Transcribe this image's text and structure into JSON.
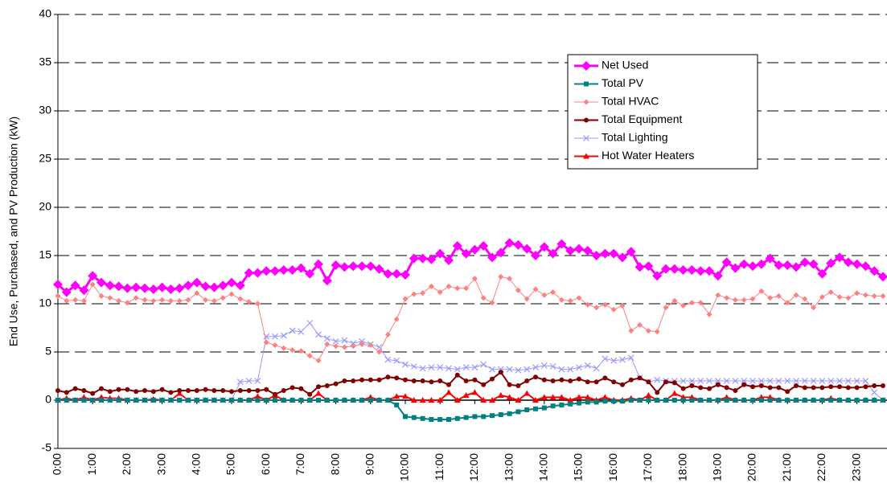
{
  "chart_data": {
    "type": "line",
    "y_label": "End Use, Purchased, and PV Production (kW)",
    "categories": [
      "0:00",
      null,
      null,
      null,
      "1:00",
      null,
      null,
      null,
      "2:00",
      null,
      null,
      null,
      "3:00",
      null,
      null,
      null,
      "4:00",
      null,
      null,
      null,
      "5:00",
      null,
      null,
      null,
      "6:00",
      null,
      null,
      null,
      "7:00",
      null,
      null,
      null,
      "8:00",
      null,
      null,
      null,
      "9:00",
      null,
      null,
      null,
      "10:00",
      null,
      null,
      null,
      "11:00",
      null,
      null,
      null,
      "12:00",
      null,
      null,
      null,
      "13:00",
      null,
      null,
      null,
      "14:00",
      null,
      null,
      null,
      "15:00",
      null,
      null,
      null,
      "16:00",
      null,
      null,
      null,
      "17:00",
      null,
      null,
      null,
      "18:00",
      null,
      null,
      null,
      "19:00",
      null,
      null,
      null,
      "20:00",
      null,
      null,
      null,
      "21:00",
      null,
      null,
      null,
      "22:00",
      null,
      null,
      null,
      "23:00",
      null,
      null,
      null
    ],
    "ylim": [
      -5,
      40
    ],
    "yticks": [
      -5,
      0,
      5,
      10,
      15,
      20,
      25,
      30,
      35,
      40
    ],
    "grid": true,
    "series": [
      {
        "name": "Net Used",
        "color": "#ff00ff",
        "marker": "diamond",
        "width": 3,
        "values": [
          12.0,
          11.2,
          11.9,
          11.4,
          12.9,
          12.2,
          11.9,
          11.8,
          11.6,
          11.7,
          11.6,
          11.5,
          11.7,
          11.5,
          11.6,
          11.9,
          12.2,
          11.8,
          11.7,
          11.9,
          12.2,
          11.9,
          13.2,
          13.2,
          13.4,
          13.4,
          13.5,
          13.5,
          13.7,
          13.1,
          14.1,
          12.4,
          14.0,
          13.8,
          13.9,
          13.9,
          13.9,
          13.6,
          13.1,
          13.1,
          13.0,
          14.7,
          14.7,
          14.6,
          15.2,
          14.5,
          16.0,
          15.2,
          15.6,
          16.0,
          14.8,
          15.3,
          16.3,
          16.1,
          15.7,
          15.0,
          15.9,
          15.2,
          16.2,
          15.5,
          15.7,
          15.5,
          15.0,
          15.2,
          15.2,
          14.8,
          15.4,
          13.8,
          13.9,
          12.9,
          13.6,
          13.6,
          13.5,
          13.5,
          13.4,
          13.4,
          12.9,
          14.3,
          13.7,
          14.1,
          13.9,
          14.1,
          14.7,
          14.0,
          14.0,
          13.8,
          14.3,
          14.1,
          13.1,
          14.2,
          14.8,
          14.3,
          14.1,
          13.9,
          13.4,
          12.8
        ]
      },
      {
        "name": "Total PV",
        "color": "#008080",
        "marker": "square",
        "width": 2,
        "values": [
          0,
          0,
          0,
          0,
          0,
          0,
          0,
          0,
          0,
          0,
          0,
          0,
          0,
          0,
          0,
          0,
          0,
          0,
          0,
          0,
          0,
          0,
          0,
          0,
          0,
          0,
          0,
          0,
          0,
          0,
          0,
          0,
          0,
          0,
          0,
          0,
          0,
          0,
          0,
          -0.5,
          -1.7,
          -1.8,
          -1.9,
          -2.0,
          -2.0,
          -2.0,
          -1.9,
          -1.8,
          -1.7,
          -1.7,
          -1.6,
          -1.5,
          -1.4,
          -1.2,
          -1.0,
          -0.9,
          -0.8,
          -0.6,
          -0.5,
          -0.4,
          -0.3,
          -0.2,
          -0.2,
          -0.1,
          -0.1,
          -0.1,
          0,
          0,
          0,
          0,
          0,
          0,
          0,
          0,
          0,
          0,
          0,
          0,
          0,
          0,
          0,
          0,
          0,
          0,
          0,
          0,
          0,
          0,
          0,
          0,
          0,
          0,
          0,
          0,
          0,
          0
        ]
      },
      {
        "name": "Total HVAC",
        "color": "#ff8080",
        "marker": "diamond-small",
        "width": 1,
        "values": [
          10.8,
          10.3,
          10.4,
          10.3,
          12.0,
          10.8,
          10.6,
          10.3,
          10.1,
          10.6,
          10.4,
          10.3,
          10.4,
          10.3,
          10.3,
          10.4,
          11.1,
          10.4,
          10.3,
          10.6,
          11.0,
          10.5,
          10.2,
          10.0,
          6.0,
          5.7,
          5.4,
          5.2,
          5.1,
          4.6,
          4.1,
          5.8,
          5.6,
          5.5,
          5.6,
          5.8,
          5.7,
          5.0,
          6.8,
          8.4,
          10.5,
          11.0,
          11.1,
          11.8,
          11.2,
          11.8,
          11.6,
          11.6,
          12.6,
          10.6,
          10.1,
          12.8,
          12.6,
          11.4,
          10.5,
          11.5,
          10.9,
          11.2,
          10.4,
          10.3,
          10.6,
          9.9,
          9.6,
          9.9,
          9.4,
          9.8,
          7.2,
          7.8,
          7.2,
          7.1,
          9.6,
          10.3,
          9.8,
          10.1,
          10.1,
          8.9,
          10.9,
          10.6,
          10.4,
          10.4,
          10.5,
          11.3,
          10.6,
          10.8,
          10.1,
          10.9,
          10.5,
          9.6,
          10.7,
          11.2,
          10.7,
          10.6,
          11.1,
          10.9,
          10.8,
          10.8
        ]
      },
      {
        "name": "Total Equipment",
        "color": "#800000",
        "marker": "circle",
        "width": 2,
        "values": [
          1.0,
          0.8,
          1.2,
          1.0,
          0.7,
          1.2,
          0.9,
          1.1,
          1.1,
          0.9,
          1.0,
          0.9,
          1.1,
          0.8,
          1.0,
          1.0,
          1.0,
          1.1,
          1.0,
          1.0,
          0.9,
          1.0,
          1.0,
          1.0,
          1.1,
          0.6,
          1.0,
          1.3,
          1.2,
          0.6,
          1.4,
          1.5,
          1.7,
          2.0,
          2.0,
          2.1,
          2.1,
          2.1,
          2.4,
          2.3,
          2.1,
          2.0,
          2.0,
          1.9,
          2.0,
          1.6,
          2.6,
          2.0,
          2.1,
          1.6,
          2.2,
          2.9,
          1.6,
          1.5,
          2.0,
          2.4,
          2.1,
          2.0,
          2.1,
          2.0,
          2.2,
          1.9,
          1.9,
          2.3,
          1.9,
          1.6,
          2.1,
          2.3,
          1.9,
          0.8,
          1.9,
          1.8,
          1.2,
          1.5,
          1.3,
          1.2,
          1.6,
          1.3,
          1.0,
          1.6,
          1.4,
          1.5,
          1.3,
          1.3,
          0.9,
          1.5,
          1.3,
          1.3,
          1.3,
          1.4,
          1.4,
          1.3,
          1.3,
          1.4,
          1.5,
          1.5
        ]
      },
      {
        "name": "Total Lighting",
        "color": "#9999ff",
        "marker": "x",
        "width": 1,
        "values": [
          0,
          0,
          0,
          0,
          0,
          0,
          0,
          0,
          0,
          0,
          0,
          0,
          0,
          0,
          0,
          0,
          0,
          0,
          0,
          0,
          0,
          1.9,
          2.0,
          2.0,
          6.6,
          6.6,
          6.7,
          7.2,
          7.1,
          8.0,
          6.8,
          6.4,
          6.1,
          6.2,
          5.9,
          6.1,
          5.8,
          5.5,
          4.2,
          4.1,
          3.7,
          3.5,
          3.3,
          3.4,
          3.4,
          3.3,
          3.2,
          3.4,
          3.4,
          3.7,
          3.2,
          3.2,
          3.2,
          3.1,
          3.2,
          3.4,
          3.6,
          3.5,
          3.2,
          3.2,
          3.4,
          3.6,
          3.3,
          4.3,
          4.1,
          4.2,
          4.4,
          2.3,
          1.9,
          2.1,
          2.0,
          2.0,
          2.0,
          2.0,
          2.0,
          2.0,
          2.0,
          2.0,
          2.0,
          2.0,
          2.0,
          2.0,
          2.0,
          2.0,
          2.0,
          2.0,
          2.0,
          2.0,
          2.0,
          2.0,
          2.0,
          2.0,
          2.0,
          2.0,
          0.8,
          0
        ]
      },
      {
        "name": "Hot Water Heaters",
        "color": "#ff0000",
        "marker": "triangle",
        "width": 2,
        "values": [
          0,
          0.2,
          0,
          0.3,
          0,
          0.3,
          0.2,
          0.2,
          0,
          0,
          0,
          0.1,
          0,
          0,
          0.7,
          0,
          0,
          0,
          0,
          0,
          0,
          0,
          0,
          0.4,
          0,
          0.5,
          0,
          0,
          0,
          0,
          0.7,
          0,
          0,
          0,
          0,
          0,
          0.3,
          0,
          0,
          0.4,
          0.4,
          0,
          0,
          0,
          0,
          0.8,
          0,
          0.5,
          0.8,
          0,
          0,
          0.5,
          0.3,
          0,
          0.7,
          0,
          0.3,
          0.3,
          0.3,
          0,
          0.3,
          0.3,
          0,
          0.3,
          0,
          0,
          0.2,
          0,
          0.5,
          0,
          0,
          0.7,
          0.3,
          0.3,
          0,
          0,
          0,
          0.3,
          0,
          0,
          0,
          0.3,
          0.3,
          0,
          0,
          0,
          0,
          0,
          0,
          0.2,
          0,
          0,
          0,
          0,
          0,
          0
        ]
      }
    ]
  }
}
